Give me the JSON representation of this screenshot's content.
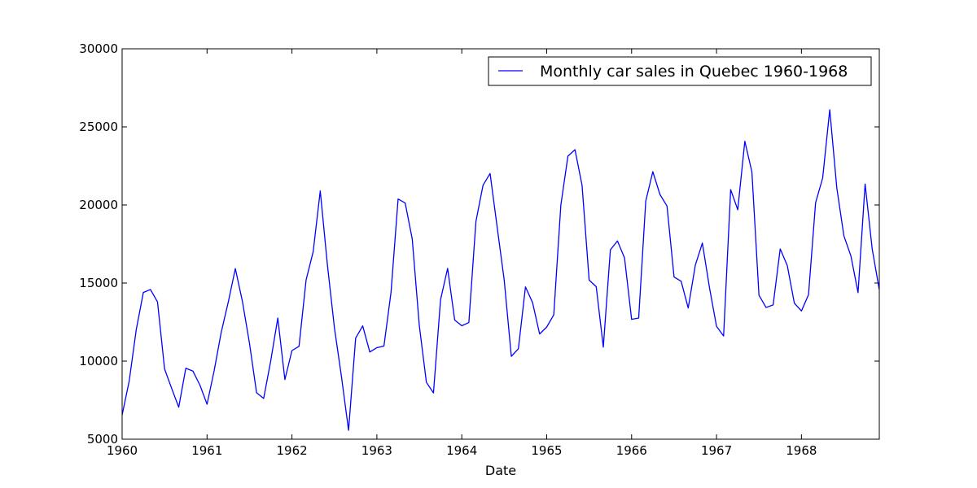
{
  "chart_data": {
    "type": "line",
    "title": "",
    "xlabel": "Date",
    "ylabel": "",
    "xlim": [
      1960.0,
      1968.917
    ],
    "ylim": [
      5000,
      30000
    ],
    "x_ticks": [
      "1960",
      "1961",
      "1962",
      "1963",
      "1964",
      "1965",
      "1966",
      "1967",
      "1968"
    ],
    "y_ticks": [
      "5000",
      "10000",
      "15000",
      "20000",
      "25000",
      "30000"
    ],
    "grid": false,
    "legend_position": "top-right",
    "series": [
      {
        "name": "Monthly car sales in Quebec 1960-1968",
        "color": "#0000ff",
        "start": "1960-01",
        "frequency": "monthly",
        "values": [
          6550,
          8728,
          12026,
          14395,
          14587,
          13791,
          9498,
          8251,
          7049,
          9545,
          9364,
          8456,
          7237,
          9374,
          11837,
          13784,
          15926,
          13821,
          11143,
          7975,
          7610,
          10015,
          12759,
          8816,
          10677,
          10947,
          15200,
          17010,
          20900,
          16205,
          12143,
          8997,
          5568,
          11474,
          12256,
          10583,
          10862,
          10965,
          14405,
          20379,
          20128,
          17816,
          12268,
          8642,
          7962,
          13932,
          15936,
          12628,
          12267,
          12470,
          18944,
          21259,
          22015,
          18581,
          15175,
          10306,
          10792,
          14752,
          13754,
          11738,
          12181,
          12965,
          19990,
          23125,
          23541,
          21247,
          15189,
          14767,
          10895,
          17130,
          17697,
          16611,
          12674,
          12760,
          20249,
          22135,
          20677,
          19933,
          15388,
          15113,
          13401,
          16135,
          17562,
          14720,
          12225,
          11608,
          20985,
          19692,
          24081,
          22114,
          14220,
          13434,
          13598,
          17187,
          16119,
          13713,
          13210,
          14251,
          20139,
          21725,
          26099,
          21084,
          18024,
          16722,
          14385,
          21342,
          17180,
          14577
        ]
      }
    ]
  },
  "colors": {
    "line": "#0000ff",
    "axes": "#000000",
    "background": "#ffffff"
  }
}
